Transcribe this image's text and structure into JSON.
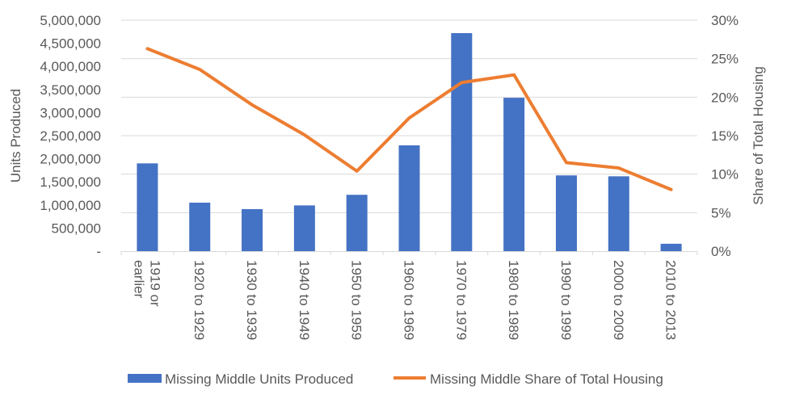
{
  "chart_data": {
    "type": "bar+line",
    "categories": [
      "1919 or earlier",
      "1920 to 1929",
      "1930 to 1939",
      "1940 to 1949",
      "1950 to 1959",
      "1960 to 1969",
      "1970 to 1979",
      "1980 to 1989",
      "1990 to 1999",
      "2000 to 2009",
      "2010 to 2013"
    ],
    "series": [
      {
        "name": "Missing Middle Units Produced",
        "type": "bar",
        "axis": "left",
        "color": "#4472C4",
        "values": [
          1900000,
          1050000,
          910000,
          990000,
          1220000,
          2290000,
          4720000,
          3320000,
          1640000,
          1620000,
          160000
        ]
      },
      {
        "name": "Missing Middle Share of Total Housing",
        "type": "line",
        "axis": "right",
        "color": "#ED7D31",
        "values": [
          26.3,
          23.6,
          19.0,
          15.1,
          10.4,
          17.3,
          21.9,
          22.9,
          11.5,
          10.8,
          8.0
        ]
      }
    ],
    "ylabel_left": "Units Produced",
    "ylabel_right": "Share of Total Housing",
    "ylim_left": [
      0,
      5000000
    ],
    "ylim_right": [
      0,
      30
    ],
    "yticks_left": [
      "-",
      "500,000",
      "1,000,000",
      "1,500,000",
      "2,000,000",
      "2,500,000",
      "3,000,000",
      "3,500,000",
      "4,000,000",
      "4,500,000",
      "5,000,000"
    ],
    "yticks_right": [
      "0%",
      "5%",
      "10%",
      "15%",
      "20%",
      "25%",
      "30%"
    ],
    "grid": true,
    "legend_position": "bottom"
  }
}
